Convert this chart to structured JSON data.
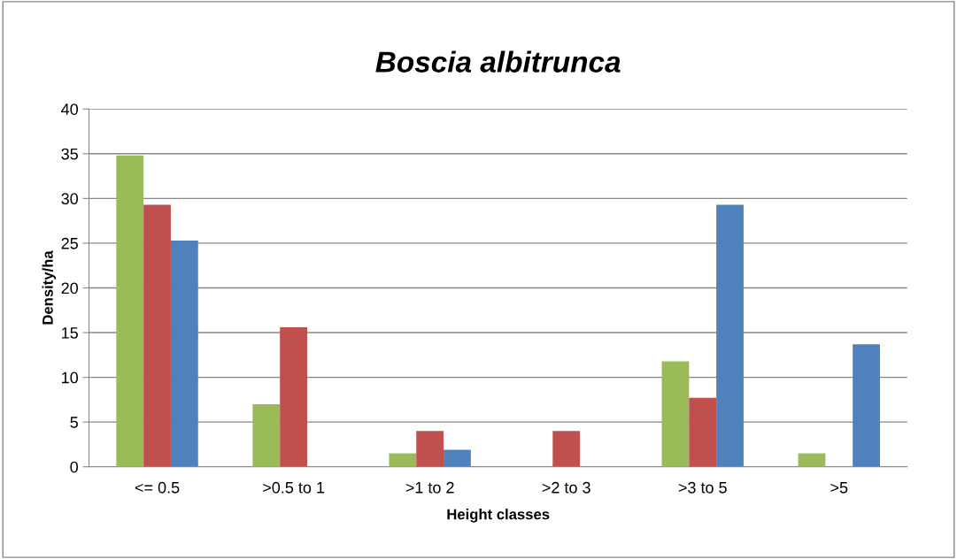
{
  "chart_data": {
    "type": "bar",
    "title": "Boscia albitrunca",
    "xlabel": "Height classes",
    "ylabel": "Density/ha",
    "categories": [
      "<= 0.5",
      ">0.5 to 1",
      ">1 to 2",
      ">2 to 3",
      ">3 to 5",
      ">5"
    ],
    "series": [
      {
        "color": "#9bbb59",
        "values": [
          34.8,
          7.0,
          1.5,
          0,
          11.8,
          1.5
        ]
      },
      {
        "color": "#c0504d",
        "values": [
          29.3,
          15.6,
          4.0,
          4.0,
          7.7,
          0
        ]
      },
      {
        "color": "#4f81bd",
        "values": [
          25.3,
          0,
          1.9,
          0,
          29.3,
          13.7
        ]
      }
    ],
    "ylim": [
      0,
      40
    ],
    "yticks": [
      0,
      5,
      10,
      15,
      20,
      25,
      30,
      35,
      40
    ],
    "grid": "y",
    "legend": false
  }
}
